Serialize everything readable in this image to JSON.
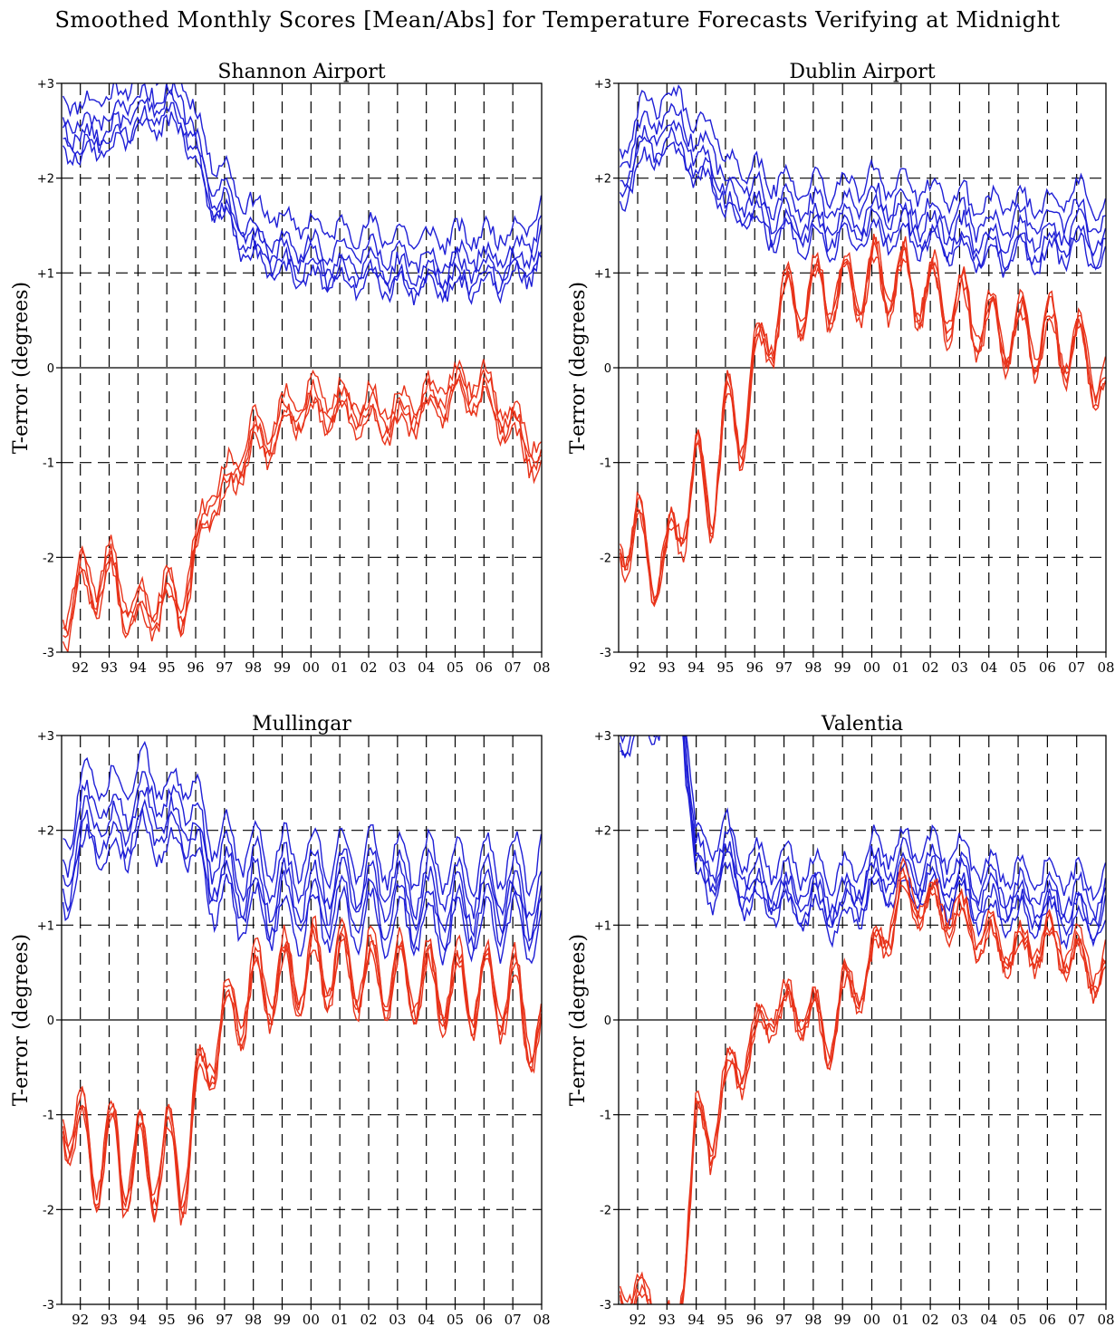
{
  "figure": {
    "title": "Smoothed Monthly Scores [Mean/Abs] for Temperature Forecasts Verifying at Midnight"
  },
  "chart_data": [
    {
      "type": "line",
      "title": "Shannon Airport",
      "ylabel": "T-error (degrees)",
      "xlabel": "",
      "xlim": [
        1991.35,
        2008.0
      ],
      "ylim": [
        -3,
        3
      ],
      "y_ticks": [
        "-3",
        "-2",
        "-1",
        "0",
        "+1",
        "+2",
        "+3"
      ],
      "x_ticks": [
        "92",
        "93",
        "94",
        "95",
        "96",
        "97",
        "98",
        "99",
        "00",
        "01",
        "02",
        "03",
        "04",
        "05",
        "06",
        "07",
        "08"
      ],
      "grid": "dashed at each year and at ±1, ±2",
      "colors": {
        "abs": "#1f1fd6",
        "mean": "#e8331a"
      },
      "series_abs_offsets": [
        0.35,
        0.12,
        0.0,
        -0.12,
        -0.2
      ],
      "series_mean_offsets": [
        0.1,
        0.0,
        -0.08,
        -0.15
      ],
      "abs_x": [
        1991.5,
        1992.0,
        1992.5,
        1993.0,
        1993.5,
        1994.0,
        1994.5,
        1995.0,
        1995.5,
        1996.0,
        1996.5,
        1997.0,
        1997.5,
        1998.0,
        1998.5,
        1999.0,
        2000.0,
        2001.0,
        2002.0,
        2003.0,
        2004.0,
        2005.0,
        2006.0,
        2007.0,
        2007.5,
        2008.0
      ],
      "abs_base": [
        2.6,
        2.3,
        2.6,
        2.4,
        2.7,
        2.6,
        2.85,
        2.7,
        2.8,
        2.3,
        1.9,
        1.75,
        1.5,
        1.35,
        1.3,
        1.2,
        1.15,
        1.1,
        1.1,
        1.05,
        1.0,
        1.05,
        1.05,
        1.1,
        1.2,
        1.35
      ],
      "abs_season_amp": 0.12,
      "mean_x": [
        1991.5,
        1992.0,
        1992.5,
        1993.0,
        1993.5,
        1994.0,
        1994.5,
        1995.0,
        1995.5,
        1996.0,
        1996.5,
        1997.0,
        1997.5,
        1998.0,
        1998.5,
        1999.0,
        2000.0,
        2001.0,
        2002.0,
        2003.0,
        2004.0,
        2005.0,
        2006.0,
        2007.0,
        2007.5,
        2008.0
      ],
      "mean_base": [
        -2.7,
        -2.1,
        -2.4,
        -2.0,
        -2.5,
        -2.5,
        -2.6,
        -2.3,
        -2.6,
        -1.9,
        -1.4,
        -1.25,
        -1.0,
        -0.7,
        -0.75,
        -0.5,
        -0.35,
        -0.4,
        -0.45,
        -0.5,
        -0.35,
        -0.2,
        -0.2,
        -0.6,
        -0.75,
        -1.0
      ],
      "mean_season_amp": 0.15
    },
    {
      "type": "line",
      "title": "Dublin Airport",
      "ylabel": "T-error (degrees)",
      "xlabel": "",
      "xlim": [
        1991.35,
        2008.0
      ],
      "ylim": [
        -3,
        3
      ],
      "y_ticks": [
        "-3",
        "-2",
        "-1",
        "0",
        "+1",
        "+2",
        "+3"
      ],
      "x_ticks": [
        "92",
        "93",
        "94",
        "95",
        "96",
        "97",
        "98",
        "99",
        "00",
        "01",
        "02",
        "03",
        "04",
        "05",
        "06",
        "07",
        "08"
      ],
      "grid": "dashed at each year and at ±1, ±2",
      "colors": {
        "abs": "#1f1fd6",
        "mean": "#e8331a"
      },
      "series_abs_offsets": [
        0.4,
        0.2,
        0.05,
        -0.08,
        -0.18
      ],
      "series_mean_offsets": [
        0.06,
        0.0,
        -0.05,
        -0.1
      ],
      "abs_x": [
        1991.5,
        1992.0,
        1992.5,
        1993.0,
        1993.5,
        1994.0,
        1994.5,
        1995.0,
        1995.5,
        1996.0,
        1996.5,
        1997.0,
        1998.0,
        1999.0,
        2000.0,
        2001.0,
        2002.0,
        2003.0,
        2004.0,
        2005.0,
        2006.0,
        2007.0,
        2007.5,
        2008.0
      ],
      "abs_base": [
        2.0,
        2.2,
        2.5,
        2.3,
        2.6,
        2.0,
        2.3,
        1.7,
        1.8,
        1.65,
        1.6,
        1.55,
        1.5,
        1.5,
        1.6,
        1.55,
        1.45,
        1.4,
        1.3,
        1.35,
        1.35,
        1.45,
        1.35,
        1.3
      ],
      "abs_season_amp": 0.15,
      "mean_x": [
        1991.5,
        1992.0,
        1992.5,
        1993.0,
        1993.5,
        1994.0,
        1994.5,
        1995.0,
        1995.5,
        1996.0,
        1996.5,
        1997.0,
        1998.0,
        1999.0,
        2000.0,
        2001.0,
        2002.0,
        2003.0,
        2004.0,
        2005.0,
        2006.0,
        2007.0,
        2007.5,
        2008.0
      ],
      "mean_base": [
        -1.8,
        -1.7,
        -2.1,
        -2.0,
        -1.6,
        -1.0,
        -1.5,
        -0.4,
        -0.7,
        0.0,
        0.4,
        0.7,
        0.8,
        0.85,
        0.95,
        0.95,
        0.8,
        0.65,
        0.45,
        0.35,
        0.35,
        0.2,
        0.1,
        -0.3
      ],
      "mean_season_amp": 0.35
    },
    {
      "type": "line",
      "title": "Mullingar",
      "ylabel": "T-error (degrees)",
      "xlabel": "",
      "xlim": [
        1991.35,
        2008.0
      ],
      "ylim": [
        -3,
        3
      ],
      "y_ticks": [
        "-3",
        "-2",
        "-1",
        "0",
        "+1",
        "+2",
        "+3"
      ],
      "x_ticks": [
        "92",
        "93",
        "94",
        "95",
        "96",
        "97",
        "98",
        "99",
        "00",
        "01",
        "02",
        "03",
        "04",
        "05",
        "06",
        "07",
        "08"
      ],
      "grid": "dashed at each year and at ±1, ±2",
      "colors": {
        "abs": "#1f1fd6",
        "mean": "#e8331a"
      },
      "series_abs_offsets": [
        0.45,
        0.22,
        0.05,
        -0.1,
        -0.25
      ],
      "series_mean_offsets": [
        0.08,
        0.0,
        -0.06,
        -0.12
      ],
      "abs_x": [
        1991.5,
        1992.0,
        1992.5,
        1993.0,
        1993.5,
        1994.0,
        1994.5,
        1995.0,
        1995.5,
        1996.0,
        1996.5,
        1997.0,
        1998.0,
        1999.0,
        2000.0,
        2001.0,
        2002.0,
        2003.0,
        2004.0,
        2005.0,
        2006.0,
        2007.0,
        2007.5,
        2008.0
      ],
      "abs_base": [
        1.6,
        1.8,
        2.3,
        1.8,
        2.2,
        2.0,
        2.4,
        1.8,
        2.3,
        1.8,
        1.6,
        1.45,
        1.35,
        1.3,
        1.3,
        1.3,
        1.3,
        1.25,
        1.2,
        1.2,
        1.2,
        1.25,
        1.15,
        1.2
      ],
      "abs_season_amp": 0.3,
      "mean_x": [
        1991.5,
        1992.0,
        1992.5,
        1993.0,
        1993.5,
        1994.0,
        1994.5,
        1995.0,
        1995.5,
        1996.0,
        1996.5,
        1997.0,
        1998.0,
        1999.0,
        2000.0,
        2001.0,
        2002.0,
        2003.0,
        2004.0,
        2005.0,
        2006.0,
        2007.0,
        2007.5,
        2008.0
      ],
      "mean_base": [
        -1.0,
        -1.1,
        -1.6,
        -1.2,
        -1.6,
        -1.4,
        -1.6,
        -1.3,
        -1.7,
        -0.9,
        -0.3,
        0.0,
        0.35,
        0.45,
        0.55,
        0.6,
        0.5,
        0.45,
        0.4,
        0.35,
        0.35,
        0.3,
        0.0,
        -0.2
      ],
      "mean_season_amp": 0.4
    },
    {
      "type": "line",
      "title": "Valentia",
      "ylabel": "T-error (degrees)",
      "xlabel": "",
      "xlim": [
        1991.35,
        2008.0
      ],
      "ylim": [
        -3,
        3
      ],
      "y_ticks": [
        "-3",
        "-2",
        "-1",
        "0",
        "+1",
        "+2",
        "+3"
      ],
      "x_ticks": [
        "92",
        "93",
        "94",
        "95",
        "96",
        "97",
        "98",
        "99",
        "00",
        "01",
        "02",
        "03",
        "04",
        "05",
        "06",
        "07",
        "08"
      ],
      "grid": "dashed at each year and at ±1, ±2",
      "colors": {
        "abs": "#1f1fd6",
        "mean": "#e8331a"
      },
      "series_abs_offsets": [
        0.3,
        0.12,
        0.0,
        -0.1,
        -0.2
      ],
      "series_mean_offsets": [
        0.06,
        0.0,
        -0.05,
        -0.1
      ],
      "abs_x": [
        1991.5,
        1992.0,
        1992.5,
        1993.0,
        1993.5,
        1994.0,
        1994.5,
        1995.0,
        1995.5,
        1996.0,
        1997.0,
        1998.0,
        1999.0,
        2000.0,
        2001.0,
        2002.0,
        2003.0,
        2004.0,
        2005.0,
        2006.0,
        2007.0,
        2007.5,
        2008.0
      ],
      "abs_base": [
        3.1,
        3.2,
        3.3,
        3.4,
        3.5,
        1.6,
        1.55,
        1.7,
        1.5,
        1.4,
        1.35,
        1.3,
        1.2,
        1.5,
        1.55,
        1.5,
        1.45,
        1.3,
        1.25,
        1.25,
        1.2,
        1.15,
        1.2
      ],
      "abs_season_amp": 0.18,
      "mean_x": [
        1991.5,
        1992.0,
        1992.5,
        1993.0,
        1993.3,
        1993.6,
        1994.0,
        1994.5,
        1995.0,
        1995.5,
        1996.0,
        1996.5,
        1997.0,
        1998.0,
        1998.5,
        1999.0,
        1999.5,
        2000.0,
        2001.0,
        2002.0,
        2003.0,
        2004.0,
        2005.0,
        2006.0,
        2007.0,
        2007.5,
        2008.0
      ],
      "mean_base": [
        -2.8,
        -3.0,
        -2.9,
        -3.2,
        -3.5,
        -2.5,
        -1.0,
        -1.3,
        -0.6,
        -0.5,
        -0.2,
        0.1,
        0.15,
        0.1,
        -0.3,
        0.3,
        0.35,
        0.6,
        1.35,
        1.25,
        1.1,
        0.85,
        0.75,
        0.85,
        0.7,
        0.55,
        0.55
      ],
      "mean_season_amp": 0.22
    }
  ]
}
